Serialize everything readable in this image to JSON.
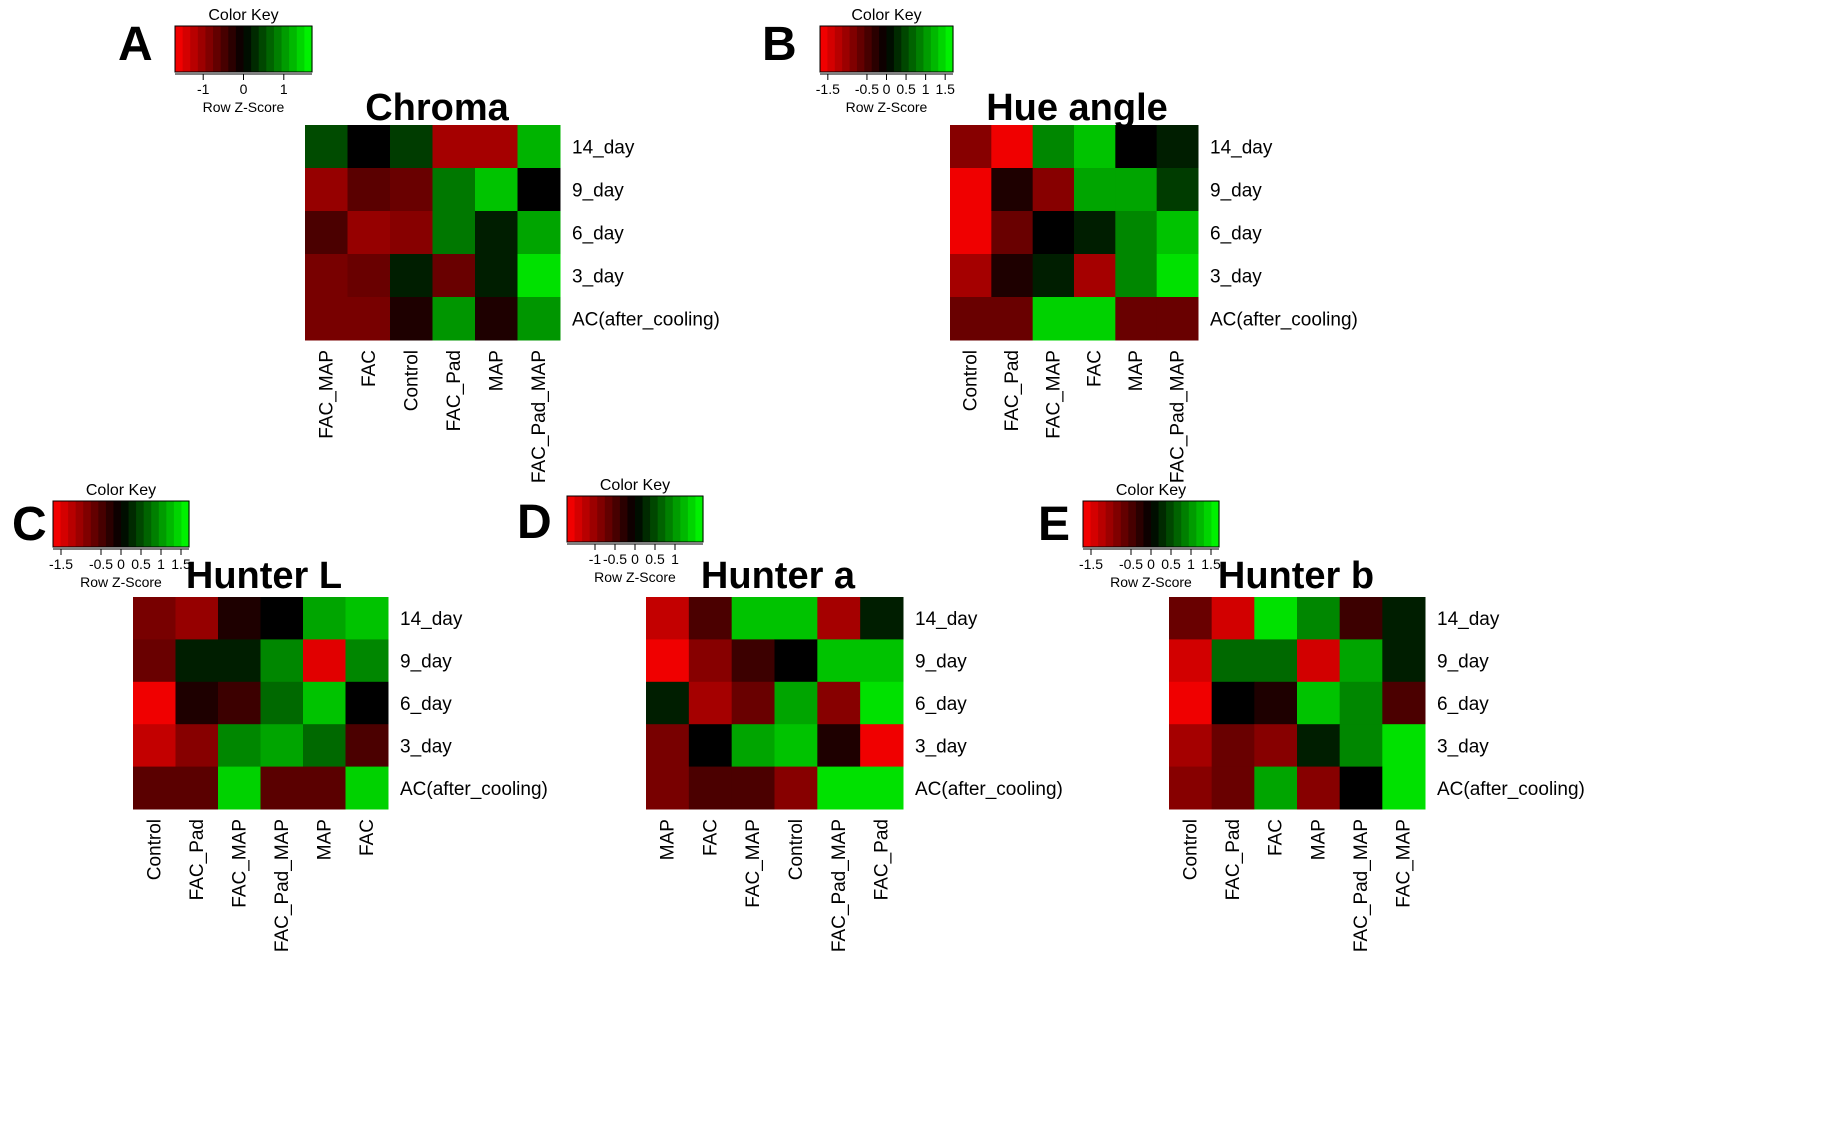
{
  "row_labels": [
    "14_day",
    "9_day",
    "6_day",
    "3_day",
    "AC(after_cooling)"
  ],
  "color_key": {
    "title": "Color Key",
    "subtitle": "Row Z-Score",
    "low_color": "#ff0000",
    "mid_color": "#000000",
    "high_color": "#00ff00"
  },
  "chart_data": [
    {
      "type": "heatmap",
      "panel": "A",
      "title": "Chroma",
      "key_ticks": [
        "-1",
        "0",
        "1"
      ],
      "key_tick_values": [
        -1,
        0,
        1
      ],
      "key_range": [
        -1.7,
        1.7
      ],
      "rows": [
        "14_day",
        "9_day",
        "6_day",
        "3_day",
        "AC(after_cooling)"
      ],
      "columns": [
        "FAC_MAP",
        "FAC",
        "Control",
        "FAC_Pad",
        "MAP",
        "FAC_Pad_MAP"
      ],
      "values": [
        [
          0.5,
          0.0,
          0.4,
          -1.1,
          -1.1,
          1.2
        ],
        [
          -1.0,
          -0.6,
          -0.7,
          0.8,
          1.3,
          0.0
        ],
        [
          -0.5,
          -1.0,
          -0.9,
          0.8,
          0.2,
          1.1
        ],
        [
          -0.8,
          -0.7,
          0.2,
          -0.7,
          0.2,
          1.5
        ],
        [
          -0.8,
          -0.8,
          -0.2,
          1.0,
          -0.2,
          1.0
        ]
      ]
    },
    {
      "type": "heatmap",
      "panel": "B",
      "title": "Hue angle",
      "key_ticks": [
        "-1.5",
        "-0.5",
        "0",
        "0.5",
        "1",
        "1.5"
      ],
      "key_tick_values": [
        -1.5,
        -0.5,
        0,
        0.5,
        1,
        1.5
      ],
      "key_range": [
        -1.7,
        1.7
      ],
      "rows": [
        "14_day",
        "9_day",
        "6_day",
        "3_day",
        "AC(after_cooling)"
      ],
      "columns": [
        "Control",
        "FAC_Pad",
        "FAC_MAP",
        "FAC",
        "MAP",
        "FAC_Pad_MAP"
      ],
      "values": [
        [
          -0.9,
          -1.6,
          0.9,
          1.3,
          0.0,
          0.2
        ],
        [
          -1.6,
          -0.2,
          -0.9,
          1.1,
          1.1,
          0.4
        ],
        [
          -1.6,
          -0.7,
          0.0,
          0.2,
          0.9,
          1.3
        ],
        [
          -1.1,
          -0.2,
          0.2,
          -1.1,
          0.9,
          1.5
        ],
        [
          -0.7,
          -0.7,
          1.4,
          1.4,
          -0.7,
          -0.7
        ]
      ]
    },
    {
      "type": "heatmap",
      "panel": "C",
      "title": "Hunter L",
      "key_ticks": [
        "-1.5",
        "-0.5",
        "0",
        "0.5",
        "1",
        "1.5"
      ],
      "key_tick_values": [
        -1.5,
        -0.5,
        0,
        0.5,
        1,
        1.5
      ],
      "key_range": [
        -1.7,
        1.7
      ],
      "rows": [
        "14_day",
        "9_day",
        "6_day",
        "3_day",
        "AC(after_cooling)"
      ],
      "columns": [
        "Control",
        "FAC_Pad",
        "FAC_MAP",
        "FAC_Pad_MAP",
        "MAP",
        "FAC"
      ],
      "values": [
        [
          -0.8,
          -1.0,
          -0.2,
          0.0,
          1.1,
          1.3
        ],
        [
          -0.7,
          0.2,
          0.2,
          0.9,
          -1.5,
          0.9
        ],
        [
          -1.6,
          -0.2,
          -0.4,
          0.7,
          1.3,
          0.0
        ],
        [
          -1.3,
          -0.9,
          0.9,
          1.1,
          0.7,
          -0.5
        ],
        [
          -0.6,
          -0.6,
          1.4,
          -0.6,
          -0.6,
          1.4
        ]
      ]
    },
    {
      "type": "heatmap",
      "panel": "D",
      "title": "Hunter a",
      "key_ticks": [
        "-1",
        "-0.5",
        "0",
        "0.5",
        "1"
      ],
      "key_tick_values": [
        -1,
        -0.5,
        0,
        0.5,
        1
      ],
      "key_range": [
        -1.7,
        1.7
      ],
      "rows": [
        "14_day",
        "9_day",
        "6_day",
        "3_day",
        "AC(after_cooling)"
      ],
      "columns": [
        "MAP",
        "FAC",
        "FAC_MAP",
        "Control",
        "FAC_Pad_MAP",
        "FAC_Pad"
      ],
      "values": [
        [
          -1.3,
          -0.5,
          1.3,
          1.3,
          -1.1,
          0.2
        ],
        [
          -1.6,
          -0.9,
          -0.4,
          0.0,
          1.3,
          1.3
        ],
        [
          0.2,
          -1.1,
          -0.7,
          1.1,
          -0.9,
          1.5
        ],
        [
          -0.8,
          0.0,
          1.1,
          1.3,
          -0.2,
          -1.6
        ],
        [
          -0.8,
          -0.5,
          -0.5,
          -0.9,
          1.5,
          1.5
        ]
      ]
    },
    {
      "type": "heatmap",
      "panel": "E",
      "title": "Hunter b",
      "key_ticks": [
        "-1.5",
        "-0.5",
        "0",
        "0.5",
        "1",
        "1.5"
      ],
      "key_tick_values": [
        -1.5,
        -0.5,
        0,
        0.5,
        1,
        1.5
      ],
      "key_range": [
        -1.7,
        1.7
      ],
      "rows": [
        "14_day",
        "9_day",
        "6_day",
        "3_day",
        "AC(after_cooling)"
      ],
      "columns": [
        "Control",
        "FAC_Pad",
        "FAC",
        "MAP",
        "FAC_Pad_MAP",
        "FAC_MAP"
      ],
      "values": [
        [
          -0.7,
          -1.4,
          1.5,
          0.9,
          -0.4,
          0.2
        ],
        [
          -1.4,
          0.7,
          0.7,
          -1.4,
          1.1,
          0.2
        ],
        [
          -1.6,
          0.0,
          -0.2,
          1.3,
          0.9,
          -0.5
        ],
        [
          -1.1,
          -0.7,
          -0.9,
          0.2,
          0.9,
          1.5
        ],
        [
          -0.9,
          -0.7,
          1.1,
          -0.9,
          0.0,
          1.5
        ]
      ]
    }
  ]
}
